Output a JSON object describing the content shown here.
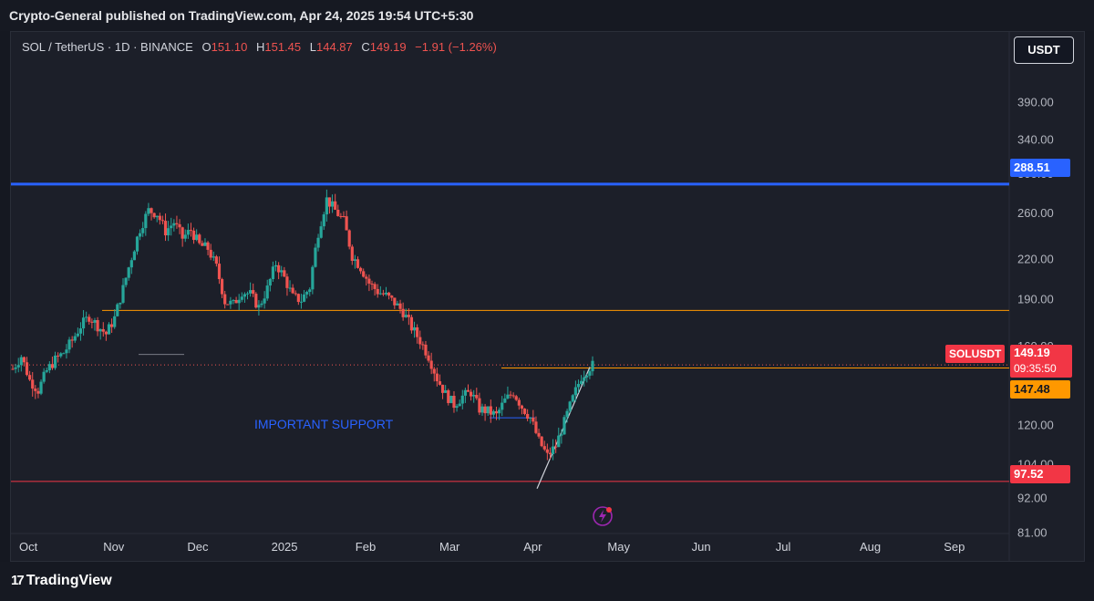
{
  "header": {
    "text": "Crypto-General published on TradingView.com, Apr 24, 2025 19:54 UTC+5:30"
  },
  "legend": {
    "symbol": "SOL / TetherUS · 1D · BINANCE",
    "o_label": "O",
    "o": "151.10",
    "h_label": "H",
    "h": "151.45",
    "l_label": "L",
    "l": "144.87",
    "c_label": "C",
    "c": "149.19",
    "change": "−1.91 (−1.26%)"
  },
  "currency_button": "USDT",
  "annotation": "IMPORTANT SUPPORT",
  "footer": {
    "brand": "TradingView"
  },
  "price_tags": {
    "resistance": "288.51",
    "symbol": "SOLUSDT",
    "last": "149.19",
    "countdown": "09:35:50",
    "support_mid": "147.48",
    "support_low": "97.52"
  },
  "colors": {
    "up": "#26a69a",
    "down": "#ef5350",
    "resistance": "#2962ff",
    "orange": "#ff9800",
    "support": "#f23645",
    "bg": "#1c1f29",
    "text": "#b2b5be"
  },
  "chart_data": {
    "type": "candlestick",
    "symbol": "SOL / TetherUS",
    "interval": "1D",
    "exchange": "BINANCE",
    "y_scale": "log",
    "ylim": [
      78,
      440
    ],
    "y_ticks": [
      "390.00",
      "340.00",
      "300.00",
      "260.00",
      "220.00",
      "190.00",
      "160.00",
      "120.00",
      "104.00",
      "92.00",
      "81.00"
    ],
    "y_tick_values": [
      390,
      340,
      300,
      260,
      220,
      190,
      160,
      120,
      104,
      92,
      81
    ],
    "x_ticks": [
      "Oct",
      "Nov",
      "Dec",
      "2025",
      "Feb",
      "Mar",
      "Apr",
      "May",
      "Jun",
      "Jul",
      "Aug",
      "Sep"
    ],
    "last_ohlc": {
      "open": 151.1,
      "high": 151.45,
      "low": 144.87,
      "close": 149.19,
      "change": -1.91,
      "change_pct": -1.26
    },
    "levels": [
      {
        "value": 288.51,
        "color": "#2962ff"
      },
      {
        "value": 182,
        "color": "#ff9800"
      },
      {
        "value": 147.48,
        "color": "#ff9800"
      },
      {
        "value": 97.52,
        "color": "#f23645"
      }
    ],
    "path_points": [
      [
        0,
        147
      ],
      [
        6,
        154
      ],
      [
        12,
        141
      ],
      [
        18,
        136
      ],
      [
        24,
        146
      ],
      [
        30,
        152
      ],
      [
        36,
        156
      ],
      [
        42,
        163
      ],
      [
        48,
        172
      ],
      [
        54,
        178
      ],
      [
        60,
        172
      ],
      [
        66,
        167
      ],
      [
        72,
        177
      ],
      [
        78,
        197
      ],
      [
        84,
        221
      ],
      [
        90,
        245
      ],
      [
        96,
        262
      ],
      [
        102,
        259
      ],
      [
        108,
        243
      ],
      [
        114,
        251
      ],
      [
        120,
        237
      ],
      [
        126,
        244
      ],
      [
        132,
        231
      ],
      [
        138,
        228
      ],
      [
        144,
        213
      ],
      [
        150,
        188
      ],
      [
        156,
        186
      ],
      [
        162,
        195
      ],
      [
        168,
        193
      ],
      [
        174,
        184
      ],
      [
        180,
        197
      ],
      [
        186,
        216
      ],
      [
        192,
        205
      ],
      [
        198,
        191
      ],
      [
        204,
        189
      ],
      [
        210,
        198
      ],
      [
        216,
        242
      ],
      [
        222,
        273
      ],
      [
        228,
        262
      ],
      [
        234,
        252
      ],
      [
        240,
        222
      ],
      [
        246,
        213
      ],
      [
        252,
        201
      ],
      [
        258,
        195
      ],
      [
        264,
        192
      ],
      [
        270,
        187
      ],
      [
        276,
        181
      ],
      [
        282,
        171
      ],
      [
        288,
        163
      ],
      [
        294,
        154
      ],
      [
        300,
        142
      ],
      [
        306,
        134
      ],
      [
        312,
        129
      ],
      [
        318,
        133
      ],
      [
        324,
        135
      ],
      [
        330,
        127
      ],
      [
        336,
        126
      ],
      [
        342,
        124
      ],
      [
        348,
        131
      ],
      [
        354,
        135
      ],
      [
        360,
        128
      ],
      [
        366,
        123
      ],
      [
        372,
        113
      ],
      [
        378,
        107
      ],
      [
        384,
        111
      ],
      [
        390,
        121
      ],
      [
        396,
        132
      ],
      [
        402,
        143
      ],
      [
        408,
        148
      ],
      [
        410,
        149
      ]
    ]
  }
}
